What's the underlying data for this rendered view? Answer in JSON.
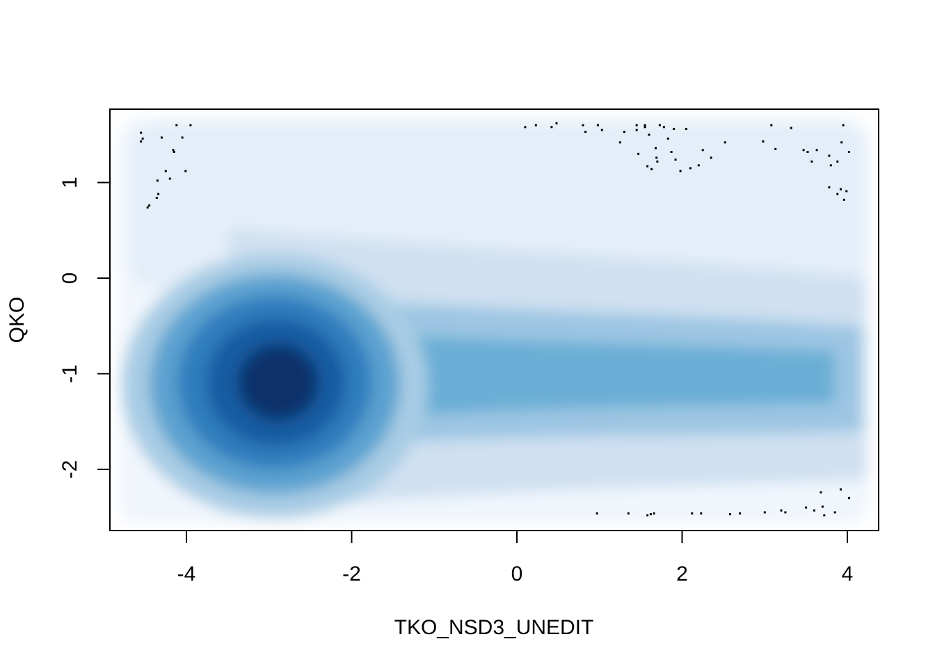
{
  "chart_data": {
    "type": "heatmap",
    "subtype": "smoothScatter",
    "title": "",
    "xlabel": "TKO_NSD3_UNEDIT",
    "ylabel": "QKO",
    "xlim": [
      -4.65,
      4.65
    ],
    "ylim": [
      -2.65,
      1.8
    ],
    "xticks": [
      -4,
      -2,
      0,
      2,
      4
    ],
    "xtick_labels": [
      "-4",
      "-2",
      "0",
      "2",
      "4"
    ],
    "yticks": [
      -2,
      -1,
      0,
      1
    ],
    "ytick_labels": [
      "-2",
      "-1",
      "0",
      "1"
    ],
    "grid": false,
    "legend": "none",
    "colors": {
      "low": "#f7fbff",
      "mid": "#6baed6",
      "high": "#08306b",
      "points": "#000000",
      "axis": "#000000"
    },
    "density_peak": {
      "x": -2.85,
      "y": -1.1
    },
    "outlier_points": [
      [
        -4.55,
        1.52
      ],
      [
        -4.55,
        1.43
      ],
      [
        -4.53,
        1.46
      ],
      [
        -4.3,
        1.47
      ],
      [
        -4.12,
        1.6
      ],
      [
        -4.16,
        1.34
      ],
      [
        -4.15,
        1.32
      ],
      [
        -4.05,
        1.47
      ],
      [
        -3.95,
        1.6
      ],
      [
        -4.01,
        1.12
      ],
      [
        -4.25,
        1.12
      ],
      [
        -4.2,
        1.04
      ],
      [
        -4.35,
        1.02
      ],
      [
        -4.34,
        0.88
      ],
      [
        -4.36,
        0.84
      ],
      [
        -4.47,
        0.74
      ],
      [
        -4.45,
        0.76
      ],
      [
        0.1,
        1.58
      ],
      [
        0.23,
        1.6
      ],
      [
        0.42,
        1.58
      ],
      [
        0.48,
        1.62
      ],
      [
        0.8,
        1.6
      ],
      [
        0.83,
        1.53
      ],
      [
        0.98,
        1.6
      ],
      [
        1.03,
        1.55
      ],
      [
        1.25,
        1.42
      ],
      [
        1.3,
        1.53
      ],
      [
        1.45,
        1.6
      ],
      [
        1.45,
        1.55
      ],
      [
        1.55,
        1.58
      ],
      [
        1.55,
        1.6
      ],
      [
        1.6,
        1.5
      ],
      [
        1.47,
        1.3
      ],
      [
        1.58,
        1.17
      ],
      [
        1.63,
        1.14
      ],
      [
        1.68,
        1.36
      ],
      [
        1.69,
        1.26
      ],
      [
        1.7,
        1.22
      ],
      [
        1.73,
        1.6
      ],
      [
        1.78,
        1.58
      ],
      [
        1.83,
        1.46
      ],
      [
        1.87,
        1.32
      ],
      [
        1.9,
        1.56
      ],
      [
        1.92,
        1.24
      ],
      [
        1.98,
        1.12
      ],
      [
        2.05,
        1.56
      ],
      [
        2.1,
        1.15
      ],
      [
        2.2,
        1.18
      ],
      [
        2.25,
        1.34
      ],
      [
        2.35,
        1.26
      ],
      [
        2.52,
        1.42
      ],
      [
        2.98,
        1.43
      ],
      [
        3.08,
        1.6
      ],
      [
        3.13,
        1.35
      ],
      [
        3.32,
        1.57
      ],
      [
        3.47,
        1.34
      ],
      [
        3.52,
        1.32
      ],
      [
        3.57,
        1.22
      ],
      [
        3.63,
        1.34
      ],
      [
        3.78,
        1.28
      ],
      [
        3.8,
        1.18
      ],
      [
        3.88,
        1.22
      ],
      [
        3.93,
        1.42
      ],
      [
        3.95,
        1.6
      ],
      [
        4.02,
        1.32
      ],
      [
        3.78,
        0.95
      ],
      [
        3.88,
        0.88
      ],
      [
        3.92,
        0.93
      ],
      [
        3.96,
        0.82
      ],
      [
        3.99,
        0.91
      ],
      [
        0.97,
        -2.46
      ],
      [
        1.35,
        -2.46
      ],
      [
        1.58,
        -2.48
      ],
      [
        1.62,
        -2.47
      ],
      [
        1.66,
        -2.46
      ],
      [
        2.12,
        -2.46
      ],
      [
        2.23,
        -2.46
      ],
      [
        2.58,
        -2.47
      ],
      [
        2.7,
        -2.46
      ],
      [
        3.0,
        -2.45
      ],
      [
        3.2,
        -2.43
      ],
      [
        3.25,
        -2.45
      ],
      [
        3.5,
        -2.4
      ],
      [
        3.6,
        -2.43
      ],
      [
        3.68,
        -2.24
      ],
      [
        3.7,
        -2.39
      ],
      [
        3.72,
        -2.48
      ],
      [
        3.85,
        -2.45
      ],
      [
        3.92,
        -2.21
      ],
      [
        4.02,
        -2.3
      ]
    ]
  }
}
